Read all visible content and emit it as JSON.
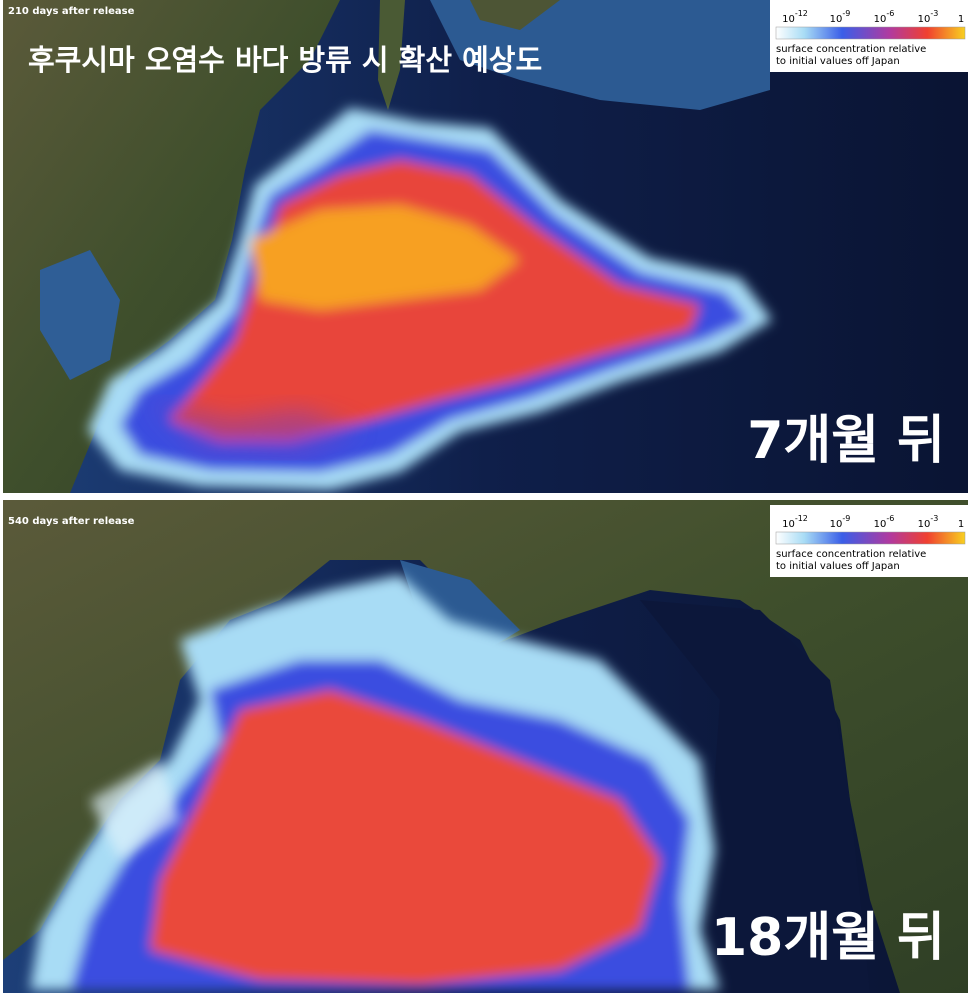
{
  "panels": [
    {
      "caption": "210 days after release",
      "title": "후쿠시마 오염수 바다 방류 시 확산 예상도",
      "overlay": "7개월 뒤",
      "colorbar": {
        "ticks": [
          {
            "base": "10",
            "exp": "-12"
          },
          {
            "base": "10",
            "exp": "-9"
          },
          {
            "base": "10",
            "exp": "-6"
          },
          {
            "base": "10",
            "exp": "-3"
          },
          {
            "base": "1"
          }
        ],
        "label": [
          "surface concentration relative",
          "to initial values off Japan"
        ]
      }
    },
    {
      "caption": "540 days after release",
      "overlay": "18개월 뒤",
      "colorbar": {
        "ticks": [
          {
            "base": "10",
            "exp": "-12"
          },
          {
            "base": "10",
            "exp": "-9"
          },
          {
            "base": "10",
            "exp": "-6"
          },
          {
            "base": "10",
            "exp": "-3"
          },
          {
            "base": "1"
          }
        ],
        "label": [
          "surface concentration relative",
          "to initial values off Japan"
        ]
      }
    }
  ]
}
